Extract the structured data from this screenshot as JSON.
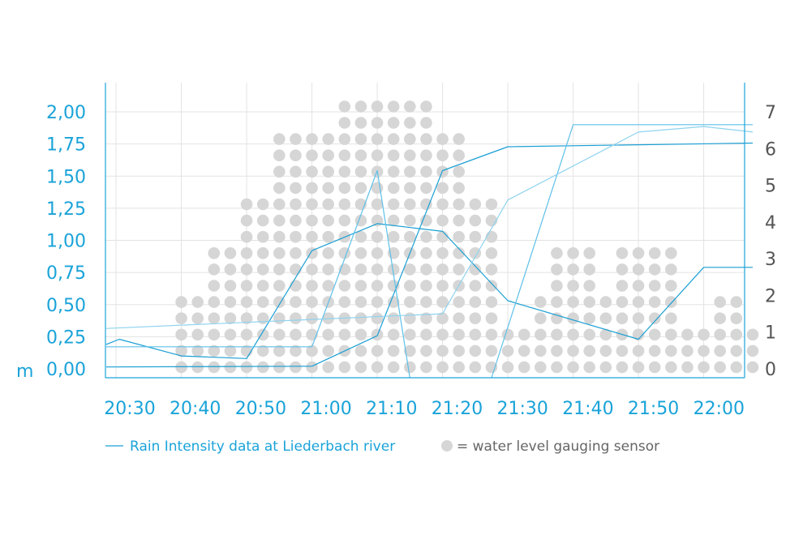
{
  "chart_data": {
    "type": "line",
    "left_axis": {
      "unit": "m",
      "ticks": [
        "0,00",
        "0,25",
        "0,50",
        "0,75",
        "1,00",
        "1,25",
        "1,50",
        "1,75",
        "2,00"
      ],
      "range": [
        0,
        2.0
      ]
    },
    "right_axis": {
      "ticks": [
        "0",
        "1",
        "2",
        "3",
        "4",
        "5",
        "6",
        "7"
      ],
      "range": [
        0,
        7
      ]
    },
    "x_ticks": [
      "20:30",
      "20:40",
      "20:50",
      "21:00",
      "21:10",
      "21:20",
      "21:30",
      "21:40",
      "21:50",
      "22:00"
    ],
    "x_range_minutes": [
      0,
      95
    ],
    "grid": true,
    "dot_columns": [
      {
        "x": 11.5,
        "count": 5
      },
      {
        "x": 14,
        "count": 5
      },
      {
        "x": 16.5,
        "count": 8
      },
      {
        "x": 19,
        "count": 8
      },
      {
        "x": 21.5,
        "count": 11
      },
      {
        "x": 24,
        "count": 11
      },
      {
        "x": 26.5,
        "count": 15
      },
      {
        "x": 29,
        "count": 15
      },
      {
        "x": 31.5,
        "count": 15
      },
      {
        "x": 34,
        "count": 15
      },
      {
        "x": 36.5,
        "count": 17
      },
      {
        "x": 39,
        "count": 17
      },
      {
        "x": 41.5,
        "count": 17
      },
      {
        "x": 44,
        "count": 17
      },
      {
        "x": 46.5,
        "count": 17
      },
      {
        "x": 49,
        "count": 17
      },
      {
        "x": 51.5,
        "count": 15
      },
      {
        "x": 54,
        "count": 15
      },
      {
        "x": 56.5,
        "count": 11
      },
      {
        "x": 59,
        "count": 11
      },
      {
        "x": 61.5,
        "count": 3
      },
      {
        "x": 64,
        "count": 3
      },
      {
        "x": 66.5,
        "count": 5
      },
      {
        "x": 69,
        "count": 8
      },
      {
        "x": 71.5,
        "count": 8
      },
      {
        "x": 74,
        "count": 8
      },
      {
        "x": 76.5,
        "count": 5
      },
      {
        "x": 79,
        "count": 8
      },
      {
        "x": 81.5,
        "count": 8
      },
      {
        "x": 84,
        "count": 8
      },
      {
        "x": 86.5,
        "count": 8
      },
      {
        "x": 89,
        "count": 3
      },
      {
        "x": 91.5,
        "count": 3
      },
      {
        "x": 94,
        "count": 5
      },
      {
        "x": 96.5,
        "count": 5
      },
      {
        "x": 99,
        "count": 3
      }
    ],
    "series": [
      {
        "name": "Rain Intensity data at Liederbach river",
        "axis": "left",
        "color": "#1a9fd4",
        "points": [
          [
            0,
            0.19
          ],
          [
            2,
            0.23
          ],
          [
            11.5,
            0.1
          ],
          [
            21.5,
            0.08
          ],
          [
            31.5,
            0.92
          ],
          [
            41.5,
            1.13
          ],
          [
            51.5,
            1.07
          ],
          [
            61.5,
            0.53
          ],
          [
            81.5,
            0.23
          ],
          [
            91.5,
            0.79
          ],
          [
            99,
            0.79
          ]
        ]
      },
      {
        "name": "",
        "axis": "right",
        "color": "#1a9fd4",
        "points": [
          [
            0,
            0.05
          ],
          [
            31.5,
            0.07
          ],
          [
            41.5,
            0.9
          ],
          [
            51.5,
            5.4
          ],
          [
            61.5,
            6.05
          ],
          [
            99,
            6.15
          ]
        ]
      },
      {
        "name": "",
        "axis": "right",
        "color": "#5ec0e8",
        "points": [
          [
            0,
            0.6
          ],
          [
            21.5,
            0.6
          ],
          [
            31.5,
            0.6
          ],
          [
            41.5,
            5.4
          ],
          [
            46.5,
            -0.3
          ]
        ]
      },
      {
        "name": "",
        "axis": "right",
        "color": "#5ec0e8",
        "points": [
          [
            59,
            -0.3
          ],
          [
            71.5,
            6.65
          ],
          [
            99,
            6.65
          ]
        ]
      },
      {
        "name": "",
        "axis": "right",
        "color": "#8fd3ef",
        "points": [
          [
            0,
            1.1
          ],
          [
            51.5,
            1.5
          ],
          [
            61.5,
            4.6
          ],
          [
            81.5,
            6.45
          ],
          [
            91.5,
            6.6
          ],
          [
            99,
            6.45
          ]
        ]
      }
    ]
  },
  "legend": {
    "line_label": "Rain Intensity data at Liederbach river",
    "dot_label": "= water level gauging sensor"
  },
  "colors": {
    "axis": "#1aa3d9",
    "grid": "#e3e3e3",
    "dot": "#d6d6d6"
  }
}
